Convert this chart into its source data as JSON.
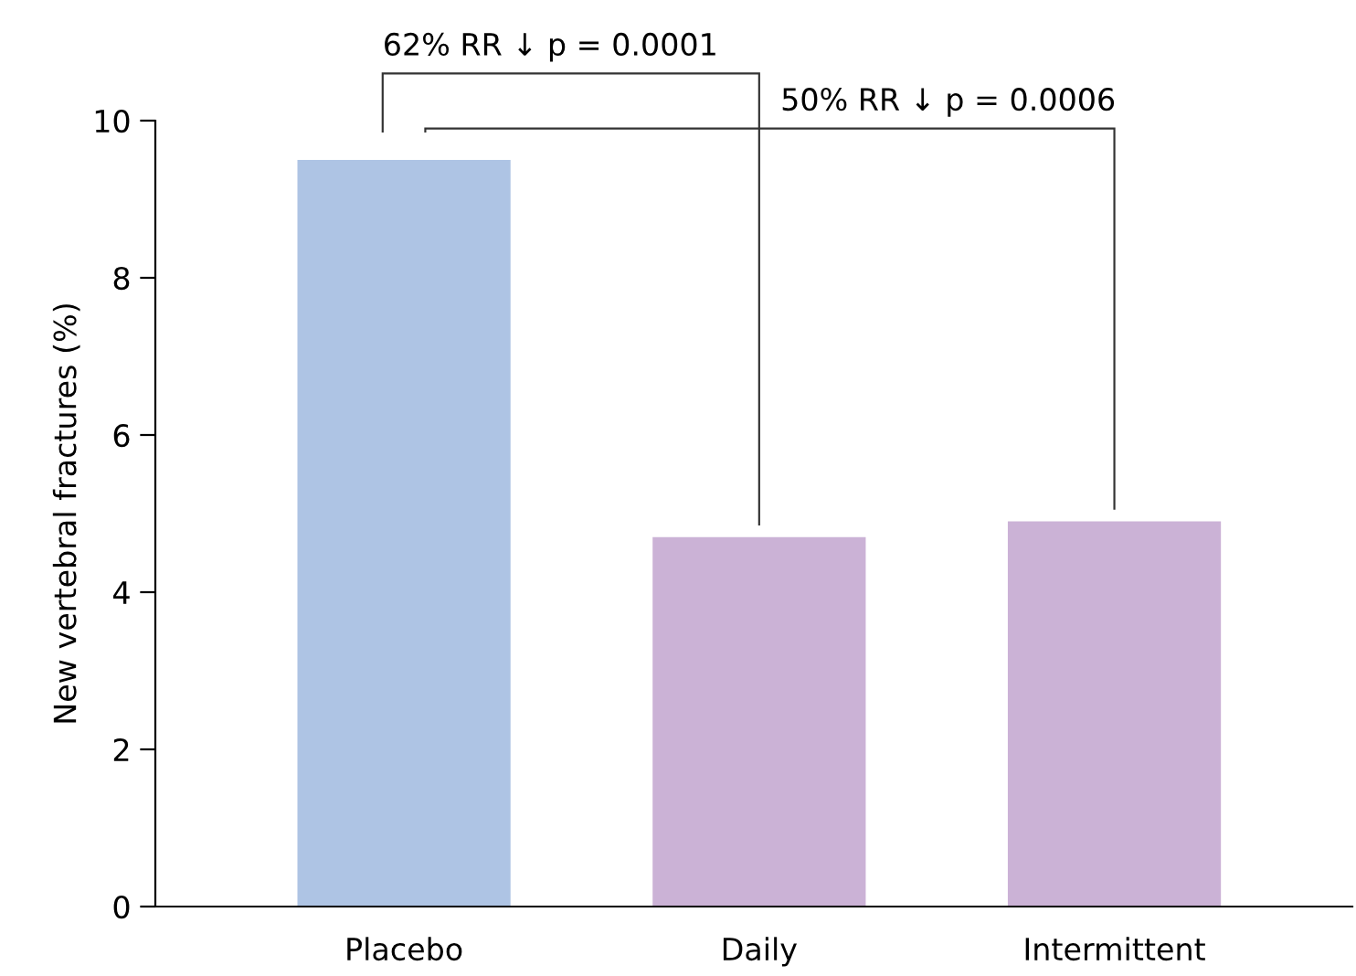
{
  "chart_data": {
    "type": "bar",
    "ylabel": "New vertebral fractures (%)",
    "categories": [
      "Placebo",
      "Daily",
      "Intermittent"
    ],
    "values": [
      9.5,
      4.7,
      4.9
    ],
    "colors": [
      "#aec4e4",
      "#cbb2d6",
      "#cbb2d6"
    ],
    "ylim": [
      0,
      10
    ],
    "yticks": [
      0,
      2,
      4,
      6,
      8,
      10
    ],
    "grid": false,
    "legend": false,
    "annotations": [
      "62% RR ↓ p = 0.0001",
      "50% RR ↓ p = 0.0006"
    ]
  }
}
